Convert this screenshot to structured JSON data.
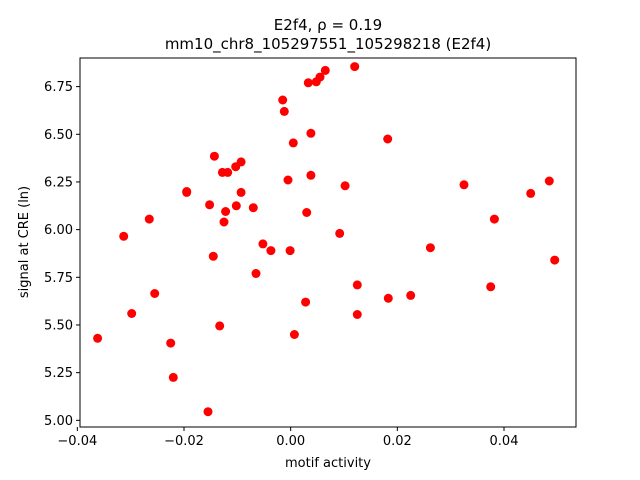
{
  "chart_data": {
    "type": "scatter",
    "title_line1": "E2f4, ρ = 0.19",
    "title_line2": "mm10_chr8_105297551_105298218 (E2f4)",
    "xlabel": "motif activity",
    "ylabel": "signal at CRE (ln)",
    "xlim": [
      -0.0395,
      0.0535
    ],
    "ylim": [
      4.965,
      6.9
    ],
    "xticks": [
      -0.04,
      -0.02,
      0.0,
      0.02,
      0.04
    ],
    "xtick_labels": [
      "−0.04",
      "−0.02",
      "0.00",
      "0.02",
      "0.04"
    ],
    "yticks": [
      5.0,
      5.25,
      5.5,
      5.75,
      6.0,
      6.25,
      6.5,
      6.75
    ],
    "ytick_labels": [
      "5.00",
      "5.25",
      "5.50",
      "5.75",
      "6.00",
      "6.25",
      "6.50",
      "6.75"
    ],
    "grid": false,
    "marker_color": "#ff0000",
    "points": [
      {
        "x": -0.0362,
        "y": 5.43
      },
      {
        "x": -0.0313,
        "y": 5.965
      },
      {
        "x": -0.0298,
        "y": 5.56
      },
      {
        "x": -0.0265,
        "y": 6.055
      },
      {
        "x": -0.0255,
        "y": 5.665
      },
      {
        "x": -0.0225,
        "y": 5.405
      },
      {
        "x": -0.022,
        "y": 5.225
      },
      {
        "x": -0.0195,
        "y": 6.2
      },
      {
        "x": -0.0195,
        "y": 6.195
      },
      {
        "x": -0.0155,
        "y": 5.045
      },
      {
        "x": -0.0152,
        "y": 6.13
      },
      {
        "x": -0.0145,
        "y": 5.86
      },
      {
        "x": -0.0143,
        "y": 6.385
      },
      {
        "x": -0.0133,
        "y": 5.495
      },
      {
        "x": -0.0128,
        "y": 6.3
      },
      {
        "x": -0.0125,
        "y": 6.04
      },
      {
        "x": -0.0122,
        "y": 6.095
      },
      {
        "x": -0.0118,
        "y": 6.3
      },
      {
        "x": -0.0103,
        "y": 6.33
      },
      {
        "x": -0.0102,
        "y": 6.125
      },
      {
        "x": -0.0093,
        "y": 6.355
      },
      {
        "x": -0.0093,
        "y": 6.195
      },
      {
        "x": -0.007,
        "y": 6.115
      },
      {
        "x": -0.0065,
        "y": 5.77
      },
      {
        "x": -0.0052,
        "y": 5.925
      },
      {
        "x": -0.0037,
        "y": 5.89
      },
      {
        "x": -0.0015,
        "y": 6.68
      },
      {
        "x": -0.0012,
        "y": 6.62
      },
      {
        "x": -0.0005,
        "y": 6.26
      },
      {
        "x": -0.0001,
        "y": 5.89
      },
      {
        "x": 0.0005,
        "y": 6.455
      },
      {
        "x": 0.0007,
        "y": 5.45
      },
      {
        "x": 0.0028,
        "y": 5.62
      },
      {
        "x": 0.003,
        "y": 6.09
      },
      {
        "x": 0.0033,
        "y": 6.77
      },
      {
        "x": 0.0038,
        "y": 6.285
      },
      {
        "x": 0.0038,
        "y": 6.505
      },
      {
        "x": 0.0048,
        "y": 6.775
      },
      {
        "x": 0.0055,
        "y": 6.8
      },
      {
        "x": 0.0065,
        "y": 6.835
      },
      {
        "x": 0.0092,
        "y": 5.98
      },
      {
        "x": 0.0102,
        "y": 6.23
      },
      {
        "x": 0.012,
        "y": 6.855
      },
      {
        "x": 0.0125,
        "y": 5.71
      },
      {
        "x": 0.0125,
        "y": 5.555
      },
      {
        "x": 0.0182,
        "y": 6.475
      },
      {
        "x": 0.0183,
        "y": 5.64
      },
      {
        "x": 0.0225,
        "y": 5.655
      },
      {
        "x": 0.0262,
        "y": 5.905
      },
      {
        "x": 0.0325,
        "y": 6.235
      },
      {
        "x": 0.0375,
        "y": 5.7
      },
      {
        "x": 0.0382,
        "y": 6.055
      },
      {
        "x": 0.045,
        "y": 6.19
      },
      {
        "x": 0.0485,
        "y": 6.255
      },
      {
        "x": 0.0495,
        "y": 5.84
      }
    ]
  }
}
